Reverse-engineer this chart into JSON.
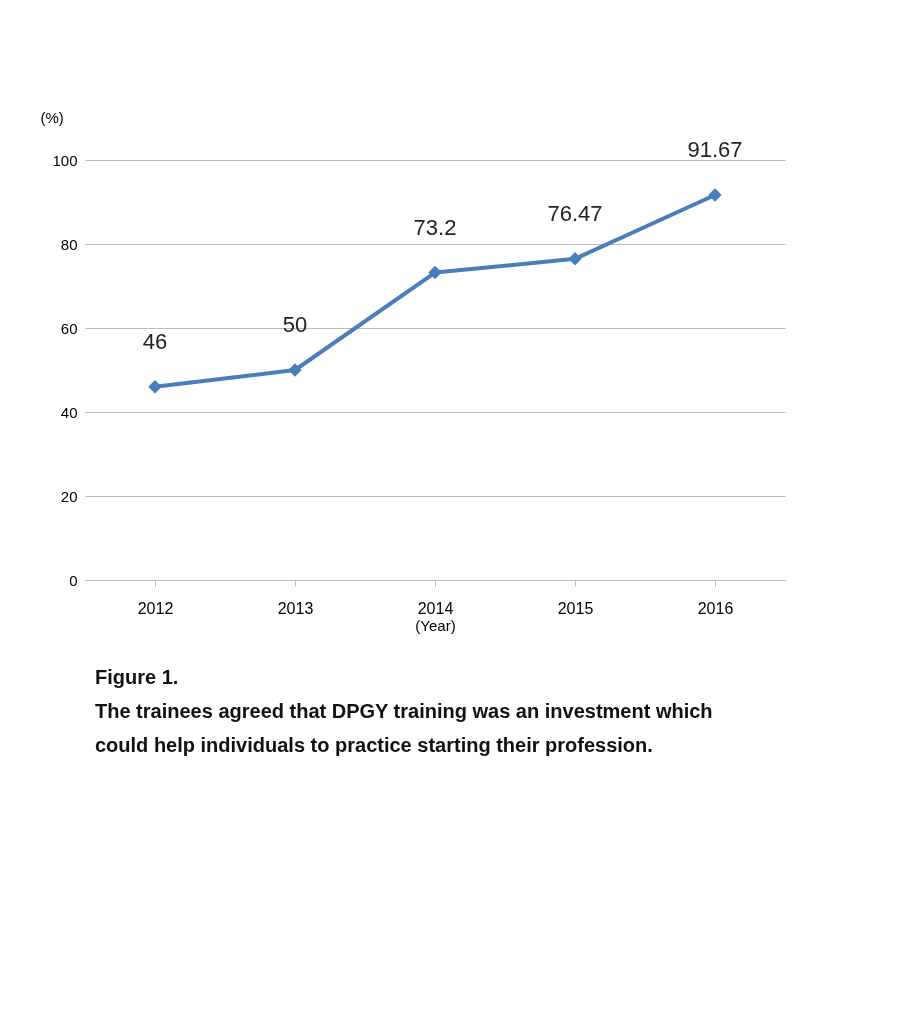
{
  "chart_data": {
    "type": "line",
    "categories": [
      "2012",
      "2013",
      "2014",
      "2015",
      "2016"
    ],
    "series": [
      {
        "color": "#4a7ebb",
        "values": [
          46,
          50,
          73.2,
          76.47,
          91.67
        ]
      }
    ],
    "ylabel": "(%)",
    "xlabel": "(Year)",
    "ylim": [
      0,
      100
    ],
    "yticks": [
      0,
      20,
      40,
      60,
      80,
      100
    ],
    "grid": "y",
    "data_labels": true,
    "marker": "diamond",
    "line_style": "solid",
    "annotations": [
      "Figure 1.",
      "The trainees agreed that DPGY training was an investment which could help individuals to practice starting their profession."
    ]
  }
}
